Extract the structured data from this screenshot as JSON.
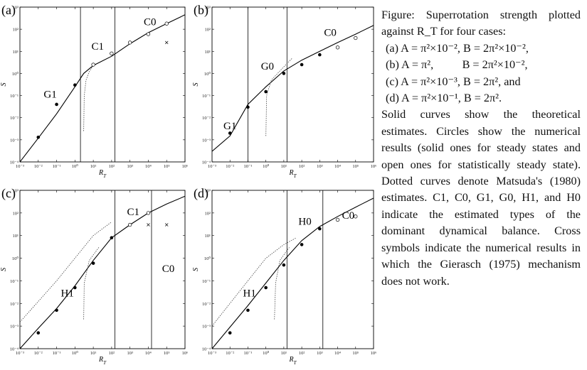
{
  "panels": [
    {
      "id": "a",
      "label": "(a)",
      "xlabel": "R_T",
      "ylabel": "S",
      "x_ticks": [
        "10⁻³",
        "10⁻²",
        "10⁻¹",
        "10⁰",
        "10¹",
        "10²",
        "10³",
        "10⁴",
        "10⁵",
        "10⁶"
      ],
      "y_ticks": [
        "10³",
        "10²",
        "10¹",
        "10⁰",
        "10⁻¹",
        "10⁻²",
        "10⁻³",
        "10⁻⁴"
      ],
      "regimes": [
        "G1",
        "C1",
        "C0"
      ]
    },
    {
      "id": "b",
      "label": "(b)",
      "xlabel": "R_T",
      "ylabel": "S",
      "x_ticks": [
        "10⁻³",
        "10⁻²",
        "10⁻¹",
        "10⁰",
        "10¹",
        "10²",
        "10³",
        "10⁴",
        "10⁵",
        "10⁶"
      ],
      "y_ticks": [
        "10³",
        "10²",
        "10¹",
        "10⁰",
        "10⁻¹",
        "10⁻²",
        "10⁻³",
        "10⁻⁴"
      ],
      "regimes": [
        "G1",
        "G0",
        "C0"
      ]
    },
    {
      "id": "c",
      "label": "(c)",
      "xlabel": "R_T",
      "ylabel": "S",
      "x_ticks": [
        "10⁻³",
        "10⁻²",
        "10⁻¹",
        "10⁰",
        "10¹",
        "10²",
        "10³",
        "10⁴",
        "10⁵",
        "10⁶"
      ],
      "y_ticks": [
        "10³",
        "10²",
        "10¹",
        "10⁰",
        "10⁻¹",
        "10⁻²",
        "10⁻³",
        "10⁻⁴"
      ],
      "regimes": [
        "H1",
        "C1",
        "C0"
      ]
    },
    {
      "id": "d",
      "label": "(d)",
      "xlabel": "R_T",
      "ylabel": "S",
      "x_ticks": [
        "10⁻³",
        "10⁻²",
        "10⁻¹",
        "10⁰",
        "10¹",
        "10²",
        "10³",
        "10⁴",
        "10⁵",
        "10⁶"
      ],
      "y_ticks": [
        "10³",
        "10²",
        "10¹",
        "10⁰",
        "10⁻¹",
        "10⁻²",
        "10⁻³",
        "10⁻⁴"
      ],
      "regimes": [
        "H1",
        "H0",
        "C0"
      ]
    }
  ],
  "caption": {
    "intro": "Figure: Superrotation strength plotted against R_T for four cases:",
    "cases": [
      "(a) A = π²×10⁻², B = 2π²×10⁻²,",
      "(b) A = π²,          B = 2π²×10⁻²,",
      "(c) A = π²×10⁻³, B = 2π², and",
      "(d) A = π²×10⁻¹, B = 2π²."
    ],
    "body": "Solid curves show the theoretical estimates. Circles show the numerical results (solid ones for steady states and open ones for statistically steady state). Dotted curves denote Matsuda's (1980) estimates. C1, C0, G1, G0, H1, and H0 indicate the estimated types of the dominant dynamical balance. Cross symbols indicate the numerical results in which the Gierasch (1975) mechanism does not work."
  },
  "chart_data": [
    {
      "type": "line",
      "panel": "(a)",
      "xlabel": "R_T",
      "ylabel": "S",
      "xscale": "log",
      "yscale": "log",
      "xlim": [
        0.001,
        1000000
      ],
      "ylim": [
        0.0001,
        1000
      ],
      "regime_boundaries": [
        2,
        150
      ],
      "theory": [
        [
          0.001,
          0.0001
        ],
        [
          0.01,
          0.0012
        ],
        [
          0.1,
          0.015
        ],
        [
          1,
          0.25
        ],
        [
          3,
          1.0
        ],
        [
          10,
          2.3
        ],
        [
          100,
          6
        ],
        [
          1000,
          22
        ],
        [
          10000,
          70
        ],
        [
          100000,
          180
        ],
        [
          1000000,
          450
        ]
      ],
      "matsuda": [
        [
          3,
          0.0025
        ],
        [
          3.2,
          0.1
        ],
        [
          4,
          0.5
        ],
        [
          6,
          1.2
        ],
        [
          10,
          2.3
        ]
      ],
      "solid_points": [
        [
          0.01,
          0.0013
        ],
        [
          0.1,
          0.04
        ],
        [
          1,
          0.3
        ]
      ],
      "open_points": [
        [
          10,
          2.5
        ],
        [
          100,
          8
        ],
        [
          1000,
          25
        ],
        [
          10000,
          60
        ],
        [
          100000,
          180
        ]
      ],
      "cross_points": [
        [
          100000,
          25
        ]
      ]
    },
    {
      "type": "line",
      "panel": "(b)",
      "xlabel": "R_T",
      "ylabel": "S",
      "xscale": "log",
      "yscale": "log",
      "xlim": [
        0.001,
        1000000
      ],
      "ylim": [
        0.0001,
        1000
      ],
      "regime_boundaries": [
        0.1,
        15
      ],
      "theory": [
        [
          0.001,
          0.0003
        ],
        [
          0.01,
          0.0015
        ],
        [
          0.1,
          0.04
        ],
        [
          1,
          0.25
        ],
        [
          10,
          1.3
        ],
        [
          100,
          4
        ],
        [
          1000,
          10
        ],
        [
          10000,
          25
        ],
        [
          100000,
          60
        ],
        [
          1000000,
          150
        ]
      ],
      "matsuda": [
        [
          1,
          0.0015
        ],
        [
          1.1,
          0.1
        ],
        [
          2,
          0.5
        ],
        [
          10,
          2
        ],
        [
          30,
          5
        ]
      ],
      "solid_points": [
        [
          0.01,
          0.002
        ],
        [
          0.1,
          0.03
        ],
        [
          1,
          0.15
        ],
        [
          10,
          1
        ],
        [
          100,
          2.5
        ],
        [
          1000,
          7
        ]
      ],
      "open_points": [
        [
          10000,
          15
        ],
        [
          100000,
          40
        ]
      ],
      "cross_points": []
    },
    {
      "type": "line",
      "panel": "(c)",
      "xlabel": "R_T",
      "ylabel": "S",
      "xscale": "log",
      "yscale": "log",
      "xlim": [
        0.001,
        1000000
      ],
      "ylim": [
        0.0001,
        1000
      ],
      "regime_boundaries": [
        150,
        15000
      ],
      "theory": [
        [
          0.001,
          0.0001
        ],
        [
          0.01,
          0.0008
        ],
        [
          0.1,
          0.006
        ],
        [
          1,
          0.06
        ],
        [
          10,
          0.8
        ],
        [
          100,
          8
        ],
        [
          1000,
          30
        ],
        [
          10000,
          100
        ],
        [
          100000,
          250
        ],
        [
          1000000,
          550
        ]
      ],
      "matsuda": [
        [
          0.001,
          0.0015
        ],
        [
          0.1,
          0.1
        ],
        [
          1,
          1
        ],
        [
          10,
          10
        ],
        [
          100,
          40
        ]
      ],
      "matsuda_branch": [
        [
          3,
          0.002
        ],
        [
          3.2,
          0.08
        ],
        [
          6,
          0.8
        ],
        [
          20,
          3
        ]
      ],
      "solid_points": [
        [
          0.01,
          0.0005
        ],
        [
          0.1,
          0.005
        ],
        [
          1,
          0.05
        ],
        [
          10,
          0.6
        ],
        [
          100,
          8
        ]
      ],
      "open_points": [
        [
          1000,
          30
        ],
        [
          10000,
          100
        ]
      ],
      "cross_points": [
        [
          10000,
          30
        ],
        [
          100000,
          30
        ]
      ]
    },
    {
      "type": "line",
      "panel": "(d)",
      "xlabel": "R_T",
      "ylabel": "S",
      "xscale": "log",
      "yscale": "log",
      "xlim": [
        0.001,
        1000000
      ],
      "ylim": [
        0.0001,
        1000
      ],
      "regime_boundaries": [
        15,
        1500
      ],
      "theory": [
        [
          0.001,
          0.0001
        ],
        [
          0.01,
          0.0009
        ],
        [
          0.1,
          0.008
        ],
        [
          1,
          0.08
        ],
        [
          10,
          0.8
        ],
        [
          100,
          6
        ],
        [
          1000,
          25
        ],
        [
          10000,
          70
        ],
        [
          100000,
          180
        ],
        [
          1000000,
          450
        ]
      ],
      "matsuda": [
        [
          0.001,
          0.001
        ],
        [
          0.1,
          0.1
        ],
        [
          1,
          1
        ],
        [
          10,
          4
        ],
        [
          50,
          8
        ]
      ],
      "matsuda_branch": [
        [
          3,
          0.002
        ],
        [
          3.5,
          0.08
        ],
        [
          6,
          0.8
        ],
        [
          20,
          3
        ]
      ],
      "solid_points": [
        [
          0.01,
          0.0005
        ],
        [
          0.1,
          0.005
        ],
        [
          1,
          0.05
        ],
        [
          10,
          0.5
        ],
        [
          100,
          4
        ],
        [
          1000,
          20
        ]
      ],
      "open_points": [
        [
          10000,
          50
        ],
        [
          100000,
          70
        ]
      ],
      "cross_points": []
    }
  ]
}
